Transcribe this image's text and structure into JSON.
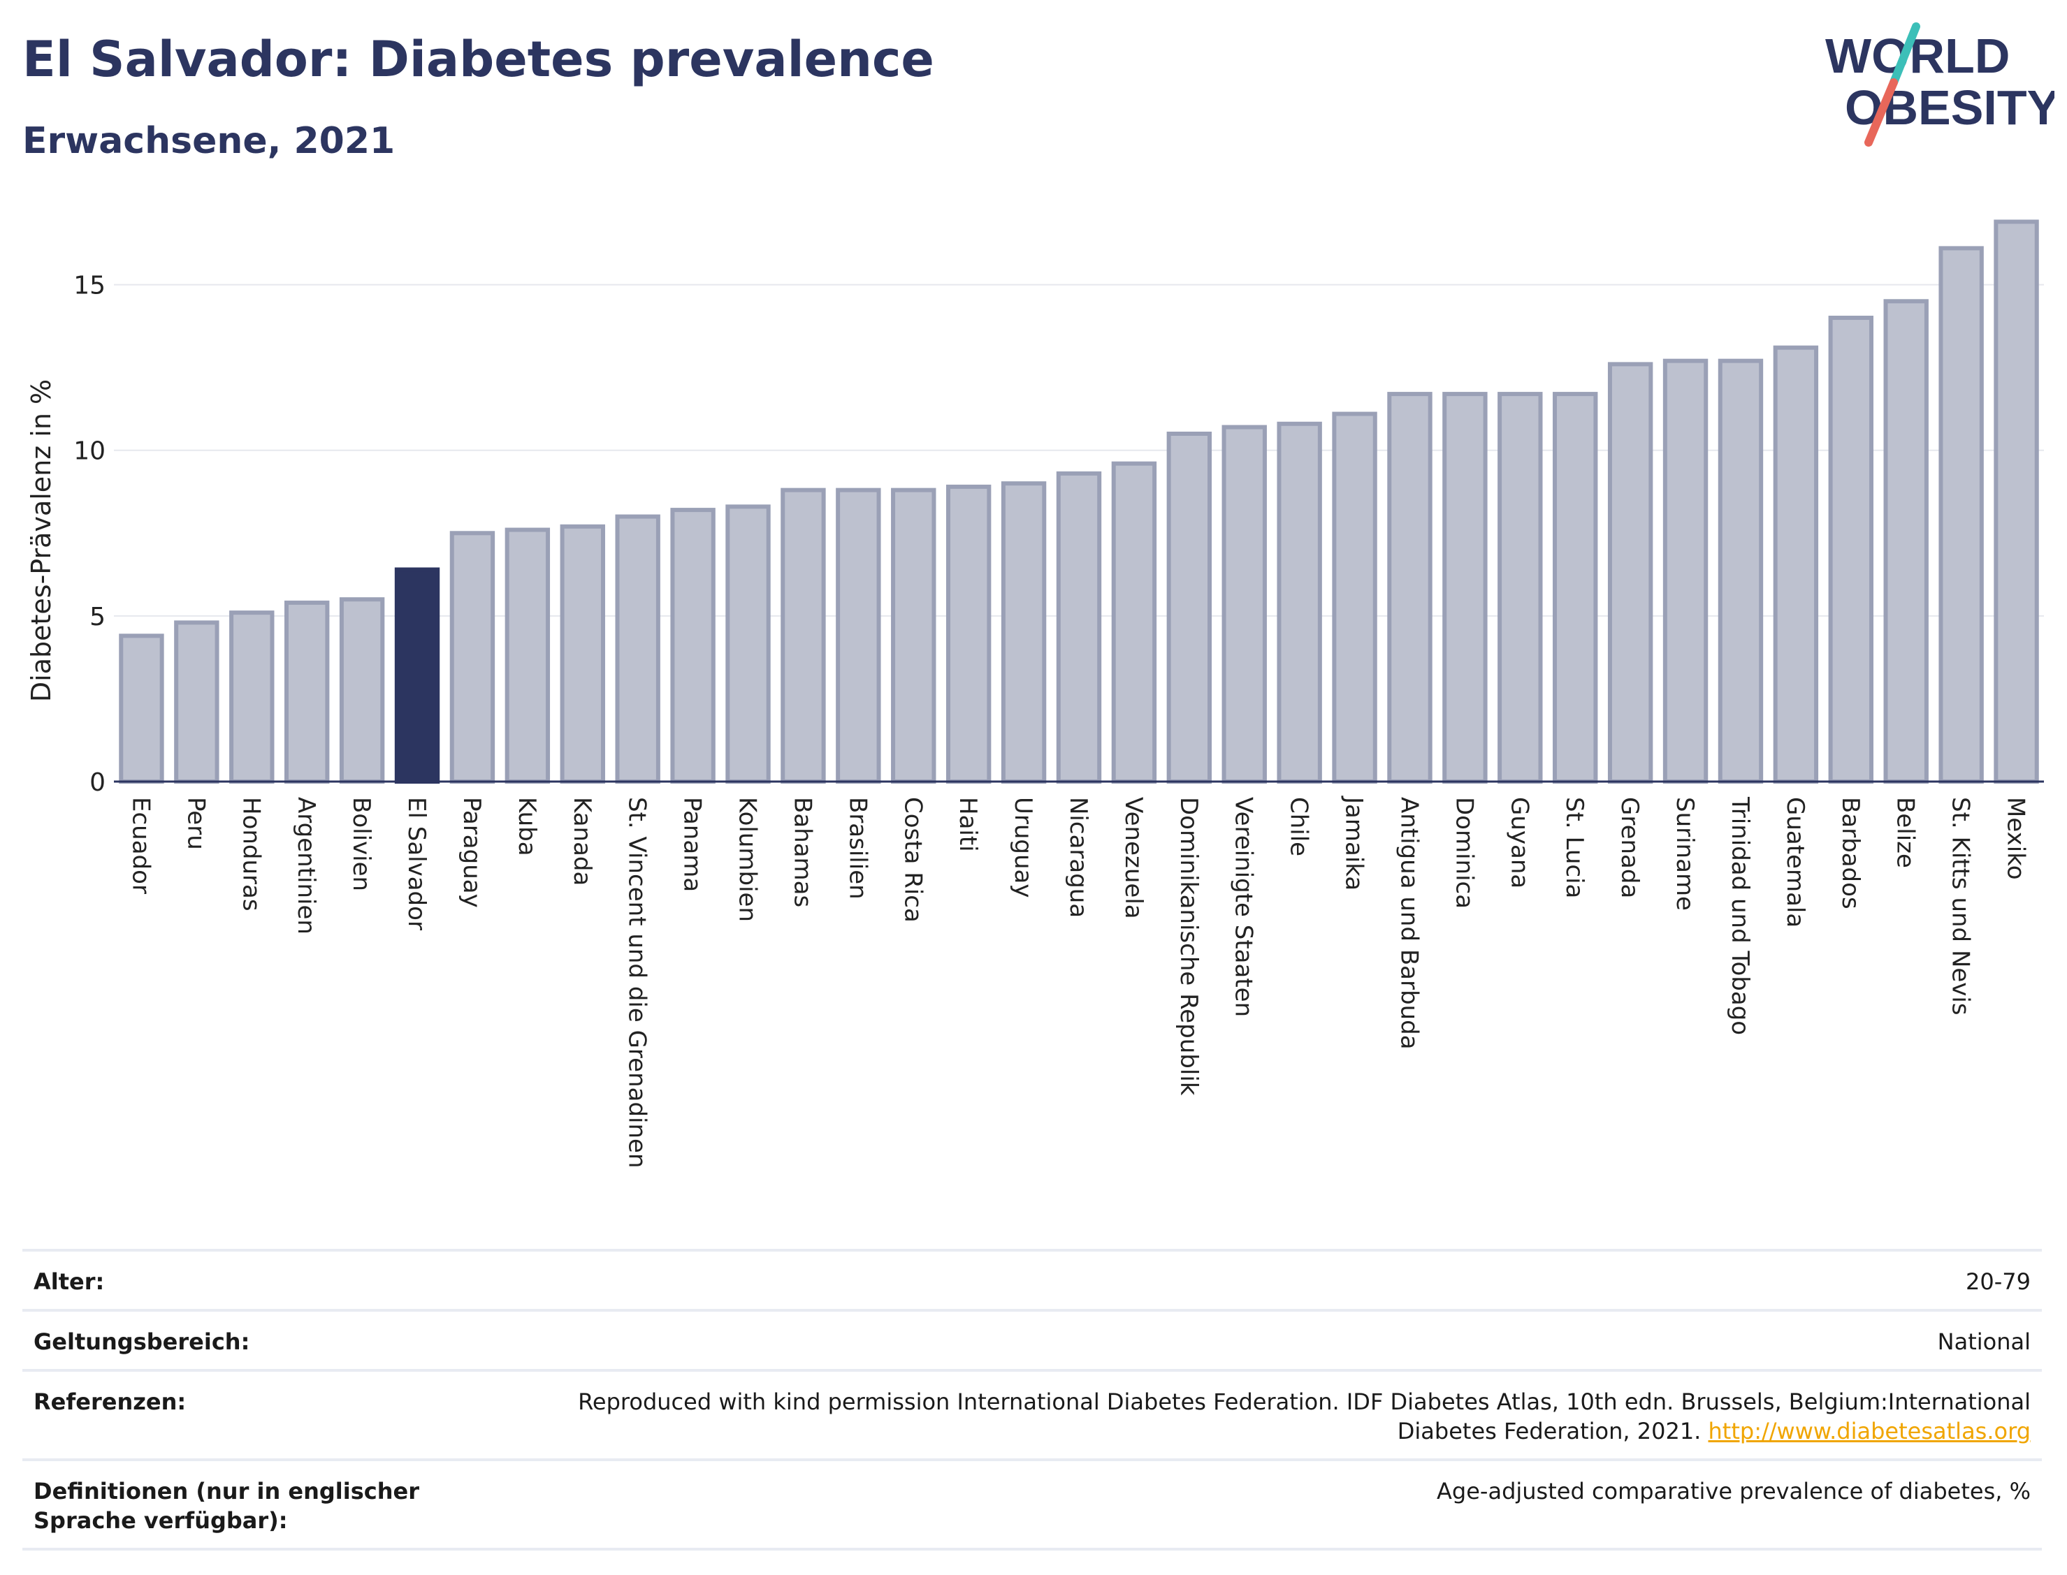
{
  "header": {
    "title": "El Salvador: Diabetes prevalence",
    "subtitle": "Erwachsene, 2021"
  },
  "logo": {
    "line1": "WORLD",
    "line2": "OBESITY",
    "colors": {
      "text": "#2c3560",
      "slash_top": "#3cbfb8",
      "slash_bottom": "#e8675a"
    }
  },
  "chart_data": {
    "type": "bar",
    "ylabel": "Diabetes-Prävalenz in %",
    "ylim": [
      0,
      17.5
    ],
    "yticks": [
      0,
      5,
      10,
      15
    ],
    "grid": true,
    "highlight": "El Salvador",
    "colors": {
      "bar": "#bdc1cf",
      "bar_border": "#9aa0b6",
      "highlight": "#2c3560"
    },
    "categories": [
      "Ecuador",
      "Peru",
      "Honduras",
      "Argentinien",
      "Bolivien",
      "El Salvador",
      "Paraguay",
      "Kuba",
      "Kanada",
      "St. Vincent und die Grenadinen",
      "Panama",
      "Kolumbien",
      "Bahamas",
      "Brasilien",
      "Costa Rica",
      "Haiti",
      "Uruguay",
      "Nicaragua",
      "Venezuela",
      "Dominikanische Republik",
      "Vereinigte Staaten",
      "Chile",
      "Jamaika",
      "Antigua und Barbuda",
      "Dominica",
      "Guyana",
      "St. Lucia",
      "Grenada",
      "Suriname",
      "Trinidad und Tobago",
      "Guatemala",
      "Barbados",
      "Belize",
      "St. Kitts und Nevis",
      "Mexiko"
    ],
    "values": [
      4.4,
      4.8,
      5.1,
      5.4,
      5.5,
      6.4,
      7.5,
      7.6,
      7.7,
      8.0,
      8.2,
      8.3,
      8.8,
      8.8,
      8.8,
      8.9,
      9.0,
      9.3,
      9.6,
      10.5,
      10.7,
      10.8,
      11.1,
      11.7,
      11.7,
      11.7,
      11.7,
      12.6,
      12.7,
      12.7,
      13.1,
      14.0,
      14.5,
      16.1,
      16.9
    ]
  },
  "meta": [
    {
      "key": "Alter:",
      "value": "20-79"
    },
    {
      "key": "Geltungsbereich:",
      "value": "National"
    },
    {
      "key": "Referenzen:",
      "value": "Reproduced with kind permission International Diabetes Federation.  IDF Diabetes Atlas, 10th edn. Brussels, Belgium:International Diabetes Federation, 2021.",
      "link": "http://www.diabetesatlas.org"
    },
    {
      "key": "Definitionen (nur in englischer Sprache verfügbar):",
      "value": "Age-adjusted comparative prevalence of diabetes, %"
    }
  ]
}
